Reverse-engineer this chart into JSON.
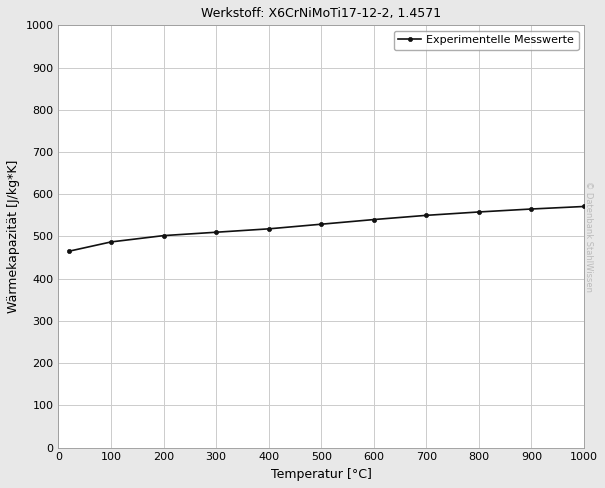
{
  "title": "Werkstoff: X6CrNiMoTi17-12-2, 1.4571",
  "xlabel": "Temperatur [°C]",
  "ylabel": "Wärmekapazität [J/kg*K]",
  "legend_label": "Experimentelle Messwerte",
  "watermark": "© Datenbank StahlWissen",
  "x_data": [
    20,
    100,
    200,
    300,
    400,
    500,
    600,
    700,
    800,
    900,
    1000
  ],
  "y_data": [
    465,
    487,
    502,
    510,
    518,
    529,
    540,
    550,
    558,
    565,
    571
  ],
  "xlim": [
    0,
    1000
  ],
  "ylim": [
    0,
    1000
  ],
  "xticks": [
    0,
    100,
    200,
    300,
    400,
    500,
    600,
    700,
    800,
    900,
    1000
  ],
  "yticks": [
    0,
    100,
    200,
    300,
    400,
    500,
    600,
    700,
    800,
    900,
    1000
  ],
  "line_color": "#111111",
  "marker": "o",
  "marker_size": 3.0,
  "line_width": 1.2,
  "grid_color": "#cccccc",
  "plot_bg_color": "#ffffff",
  "fig_bg_color": "#e8e8e8",
  "title_fontsize": 9,
  "axis_label_fontsize": 9,
  "tick_fontsize": 8,
  "legend_fontsize": 8,
  "watermark_color": "#bbbbbb",
  "watermark_fontsize": 6
}
